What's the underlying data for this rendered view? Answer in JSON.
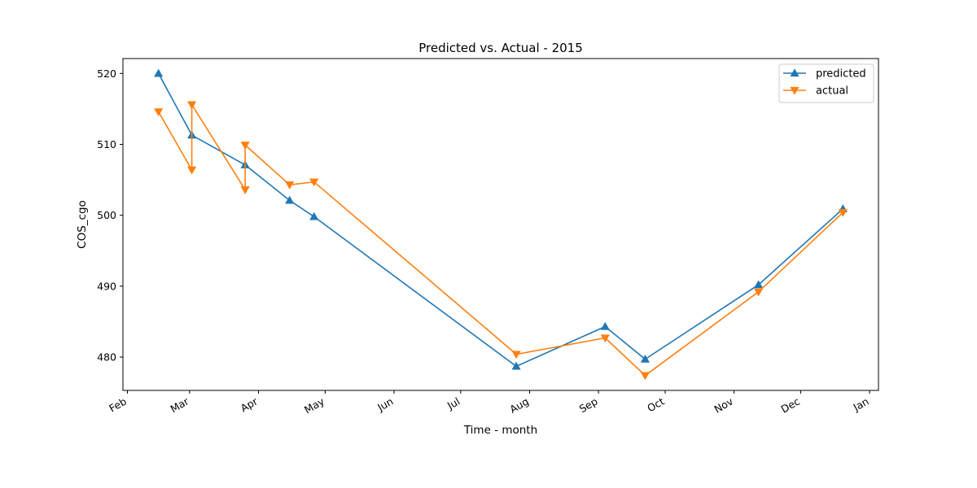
{
  "chart_data": {
    "type": "line",
    "title": "Predicted vs. Actual - 2015",
    "xlabel": "Time - month",
    "ylabel": "COS_cgo",
    "xlim": [
      "2015-01-30",
      "2016-01-05"
    ],
    "ylim": [
      475.3,
      522.1
    ],
    "x_ticks": [
      {
        "date": "2015-02-01",
        "label": "Feb"
      },
      {
        "date": "2015-03-01",
        "label": "Mar"
      },
      {
        "date": "2015-04-01",
        "label": "Apr"
      },
      {
        "date": "2015-05-01",
        "label": "May"
      },
      {
        "date": "2015-06-01",
        "label": "Jun"
      },
      {
        "date": "2015-07-01",
        "label": "Jul"
      },
      {
        "date": "2015-08-01",
        "label": "Aug"
      },
      {
        "date": "2015-09-01",
        "label": "Sep"
      },
      {
        "date": "2015-10-01",
        "label": "Oct"
      },
      {
        "date": "2015-11-01",
        "label": "Nov"
      },
      {
        "date": "2015-12-01",
        "label": "Dec"
      },
      {
        "date": "2016-01-01",
        "label": "Jan"
      }
    ],
    "y_ticks": [
      480,
      490,
      500,
      510,
      520
    ],
    "grid": false,
    "legend": "top-right",
    "series": [
      {
        "name": "predicted",
        "color": "#1f77b4",
        "marker": "triangle-up",
        "points": [
          {
            "x": "2015-02-15",
            "y": 520.0
          },
          {
            "x": "2015-03-02",
            "y": 511.3
          },
          {
            "x": "2015-03-26",
            "y": 507.1
          },
          {
            "x": "2015-04-15",
            "y": 502.1
          },
          {
            "x": "2015-04-26",
            "y": 499.8
          },
          {
            "x": "2015-07-26",
            "y": 478.7
          },
          {
            "x": "2015-09-04",
            "y": 484.3
          },
          {
            "x": "2015-09-22",
            "y": 479.7
          },
          {
            "x": "2015-11-12",
            "y": 490.2
          },
          {
            "x": "2015-12-20",
            "y": 500.9
          }
        ]
      },
      {
        "name": "actual",
        "color": "#ff7f0e",
        "marker": "triangle-down",
        "points": [
          {
            "x": "2015-02-15",
            "y": 514.6
          },
          {
            "x": "2015-03-02",
            "y": 506.4
          },
          {
            "x": "2015-03-02",
            "y": 515.6
          },
          {
            "x": "2015-03-26",
            "y": 503.6
          },
          {
            "x": "2015-03-26",
            "y": 509.9
          },
          {
            "x": "2015-04-15",
            "y": 504.3
          },
          {
            "x": "2015-04-26",
            "y": 504.7
          },
          {
            "x": "2015-07-26",
            "y": 480.4
          },
          {
            "x": "2015-09-04",
            "y": 482.7
          },
          {
            "x": "2015-09-22",
            "y": 477.4
          },
          {
            "x": "2015-11-12",
            "y": 489.2
          },
          {
            "x": "2015-12-20",
            "y": 500.4
          }
        ]
      }
    ]
  }
}
